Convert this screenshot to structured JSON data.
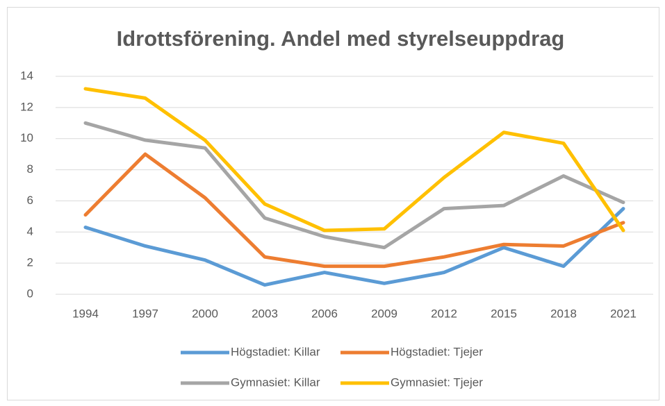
{
  "chart_data": {
    "type": "line",
    "title": "Idrottsförening. Andel med styrelseuppdrag",
    "categories": [
      "1994",
      "1997",
      "2000",
      "2003",
      "2006",
      "2009",
      "2012",
      "2015",
      "2018",
      "2021"
    ],
    "series": [
      {
        "name": "Högstadiet: Killar",
        "color": "#5b9bd5",
        "values": [
          4.3,
          3.1,
          2.2,
          0.6,
          1.4,
          0.7,
          1.4,
          3.0,
          1.8,
          5.5
        ]
      },
      {
        "name": "Högstadiet: Tjejer",
        "color": "#ed7d31",
        "values": [
          5.1,
          9.0,
          6.2,
          2.4,
          1.8,
          1.8,
          2.4,
          3.2,
          3.1,
          4.6
        ]
      },
      {
        "name": "Gymnasiet: Killar",
        "color": "#a5a5a5",
        "values": [
          11.0,
          9.9,
          9.4,
          4.9,
          3.7,
          3.0,
          5.5,
          5.7,
          7.6,
          5.9
        ]
      },
      {
        "name": "Gymnasiet: Tjejer",
        "color": "#ffc000",
        "values": [
          13.2,
          12.6,
          9.9,
          5.8,
          4.1,
          4.2,
          7.5,
          10.4,
          9.7,
          4.1
        ]
      }
    ],
    "ylim": [
      0,
      14
    ],
    "yticks": [
      0,
      2,
      4,
      6,
      8,
      10,
      12,
      14
    ],
    "grid": true,
    "legend": "bottom"
  }
}
